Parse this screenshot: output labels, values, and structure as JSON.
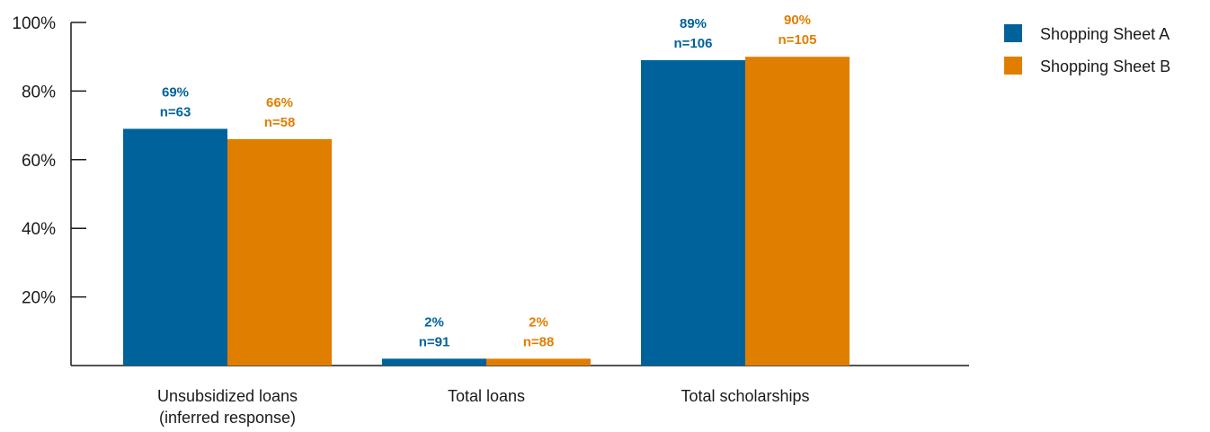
{
  "chart_data": {
    "type": "bar",
    "categories": [
      [
        "Unsubsidized loans",
        "(inferred response)"
      ],
      [
        "Total loans"
      ],
      [
        "Total scholarships"
      ]
    ],
    "series": [
      {
        "name": "Shopping Sheet A",
        "color": "#00629b",
        "values": [
          69,
          2,
          89
        ],
        "labels": [
          "69%",
          "2%",
          "89%"
        ],
        "n_labels": [
          "n=63",
          "n=91",
          "n=106"
        ]
      },
      {
        "name": "Shopping Sheet B",
        "color": "#e07e00",
        "values": [
          66,
          2,
          90
        ],
        "labels": [
          "66%",
          "2%",
          "90%"
        ],
        "n_labels": [
          "n=58",
          "n=88",
          "n=105"
        ]
      }
    ],
    "y_ticks": [
      20,
      40,
      60,
      80,
      100
    ],
    "y_tick_labels": [
      "20%",
      "40%",
      "60%",
      "80%",
      "100%"
    ],
    "ylim": [
      0,
      100
    ],
    "grid": false,
    "legend_position": "top-right"
  }
}
